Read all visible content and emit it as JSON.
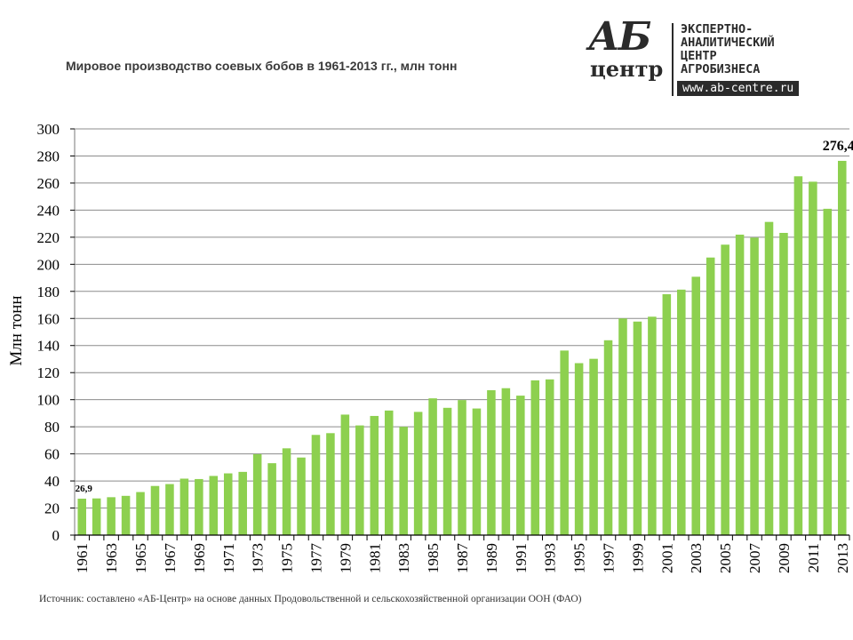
{
  "header": {
    "title": "Мировое производство соевых бобов в 1961-2013 гг., млн тонн"
  },
  "logo": {
    "mark_top": "АБ",
    "mark_bottom": "центр",
    "lines": [
      "ЭКСПЕРТНО-",
      "АНАЛИТИЧЕСКИЙ",
      "ЦЕНТР",
      "АГРОБИЗНЕСА"
    ],
    "url": "www.ab-centre.ru"
  },
  "footer": {
    "source": "Источник: составлено «АБ-Центр» на основе данных Продовольственной и сельскохозяйственной организации ООН (ФАО)"
  },
  "chart_data": {
    "type": "bar",
    "title": "Мировое производство соевых бобов в 1961-2013 гг., млн тонн",
    "xlabel": "",
    "ylabel": "Млн тонн",
    "ylim": [
      0,
      300
    ],
    "yticks": [
      0,
      20,
      40,
      60,
      80,
      100,
      120,
      140,
      160,
      180,
      200,
      220,
      240,
      260,
      280,
      300
    ],
    "grid": true,
    "bar_color": "#8dd04f",
    "categories": [
      "1961",
      "1962",
      "1963",
      "1964",
      "1965",
      "1966",
      "1967",
      "1968",
      "1969",
      "1970",
      "1971",
      "1972",
      "1973",
      "1974",
      "1975",
      "1976",
      "1977",
      "1978",
      "1979",
      "1980",
      "1981",
      "1982",
      "1983",
      "1984",
      "1985",
      "1986",
      "1987",
      "1988",
      "1989",
      "1990",
      "1991",
      "1992",
      "1993",
      "1994",
      "1995",
      "1996",
      "1997",
      "1998",
      "1999",
      "2000",
      "2001",
      "2002",
      "2003",
      "2004",
      "2005",
      "2006",
      "2007",
      "2008",
      "2009",
      "2010",
      "2011",
      "2012",
      "2013"
    ],
    "tick_labels": [
      "1961",
      "",
      "1963",
      "",
      "1965",
      "",
      "1967",
      "",
      "1969",
      "",
      "1971",
      "",
      "1973",
      "",
      "1975",
      "",
      "1977",
      "",
      "1979",
      "",
      "1981",
      "",
      "1983",
      "",
      "1985",
      "",
      "1987",
      "",
      "1989",
      "",
      "1991",
      "",
      "1993",
      "",
      "1995",
      "",
      "1997",
      "",
      "1999",
      "",
      "2001",
      "",
      "2003",
      "",
      "2005",
      "",
      "2007",
      "",
      "2009",
      "",
      "2011",
      "",
      "2013"
    ],
    "values": [
      26.9,
      27.1,
      28.0,
      29.0,
      31.8,
      36.3,
      37.7,
      41.7,
      41.4,
      43.7,
      45.6,
      46.7,
      59.8,
      53.1,
      64.1,
      57.3,
      74.0,
      75.3,
      89.0,
      81.0,
      88.0,
      92.0,
      80.0,
      91.0,
      101.0,
      94.0,
      99.7,
      93.5,
      107.0,
      108.5,
      103.0,
      114.3,
      115.0,
      136.3,
      127.0,
      130.2,
      143.9,
      160.0,
      157.7,
      161.3,
      177.9,
      181.3,
      190.8,
      205.0,
      214.5,
      221.9,
      219.7,
      231.3,
      223.2,
      265.0,
      261.0,
      241.0,
      276.4
    ],
    "data_labels": [
      {
        "category": "1961",
        "text": "26,9"
      },
      {
        "category": "2013",
        "text": "276,4"
      }
    ]
  }
}
